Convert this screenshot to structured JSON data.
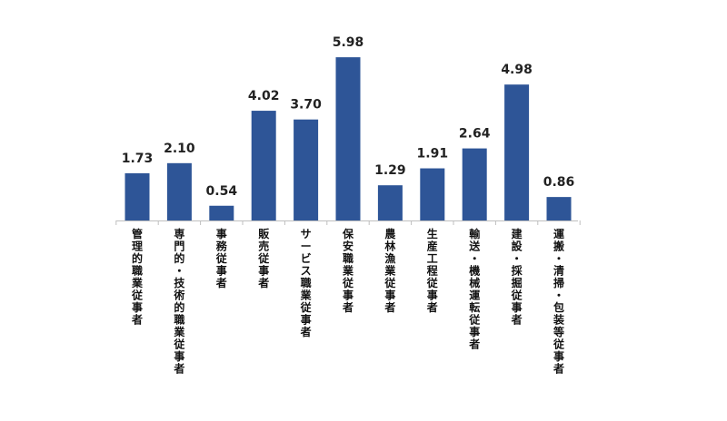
{
  "chart_data": {
    "type": "bar",
    "categories": [
      "管理的職業従事者",
      "専門的・技術的職業従事者",
      "事務従事者",
      "販売従事者",
      "サービス職業従事者",
      "保安職業従事者",
      "農林漁業従事者",
      "生産工程従事者",
      "輸送・機械運転従事者",
      "建設・採掘従事者",
      "運搬・清掃・包装等従事者"
    ],
    "values": [
      1.73,
      2.1,
      0.54,
      4.02,
      3.7,
      5.98,
      1.29,
      1.91,
      2.64,
      4.98,
      0.86
    ],
    "value_labels": [
      "1.73",
      "2.10",
      "0.54",
      "4.02",
      "3.70",
      "5.98",
      "1.29",
      "1.91",
      "2.64",
      "4.98",
      "0.86"
    ],
    "title": "",
    "xlabel": "",
    "ylabel": "",
    "ylim": [
      0,
      6.5
    ],
    "grid": false,
    "legend": "none",
    "bar_color": "#2E5597",
    "axis_color": "#BFBFBF"
  }
}
